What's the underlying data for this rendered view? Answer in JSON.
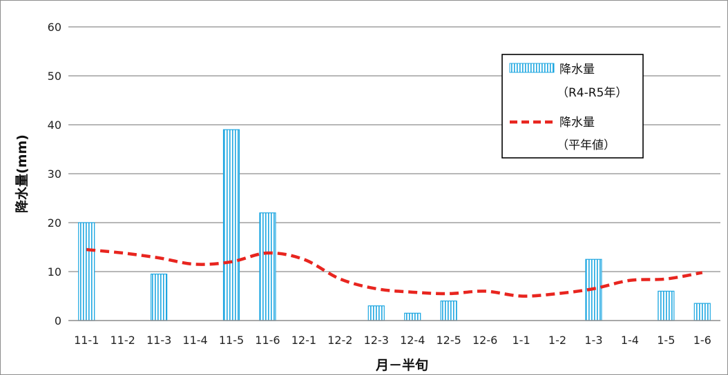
{
  "chart_data": {
    "type": "bar",
    "categories": [
      "11-1",
      "11-2",
      "11-3",
      "11-4",
      "11-5",
      "11-6",
      "12-1",
      "12-2",
      "12-3",
      "12-4",
      "12-5",
      "12-6",
      "1-1",
      "1-2",
      "1-3",
      "1-4",
      "1-5",
      "1-6"
    ],
    "series": [
      {
        "name": "降水量（R4-R5年）",
        "name_lines": [
          "降水量",
          "（R4-R5年）"
        ],
        "type": "bar",
        "values": [
          20,
          0,
          9.5,
          0,
          39,
          22,
          0,
          0,
          3,
          1.5,
          4,
          0,
          0,
          0,
          12.5,
          0,
          6,
          3.5
        ],
        "color": "#1ea7e1",
        "pattern": "vertical-hatch"
      },
      {
        "name": "降水量（平年値）",
        "name_lines": [
          "降水量",
          "（平年値）"
        ],
        "type": "line",
        "values": [
          14.5,
          13.8,
          12.8,
          11.5,
          12,
          13.8,
          12.5,
          8.5,
          6.5,
          5.8,
          5.5,
          6,
          5,
          5.5,
          6.5,
          8.2,
          8.5,
          9.8
        ],
        "color": "#e8251f",
        "dash": "dashed"
      }
    ],
    "xlabel": "月－半旬",
    "ylabel": "降水量(mm)",
    "ylim": [
      0,
      60
    ],
    "yticks": [
      0,
      10,
      20,
      30,
      40,
      50,
      60
    ],
    "grid": true,
    "legend_position": "top-right"
  }
}
